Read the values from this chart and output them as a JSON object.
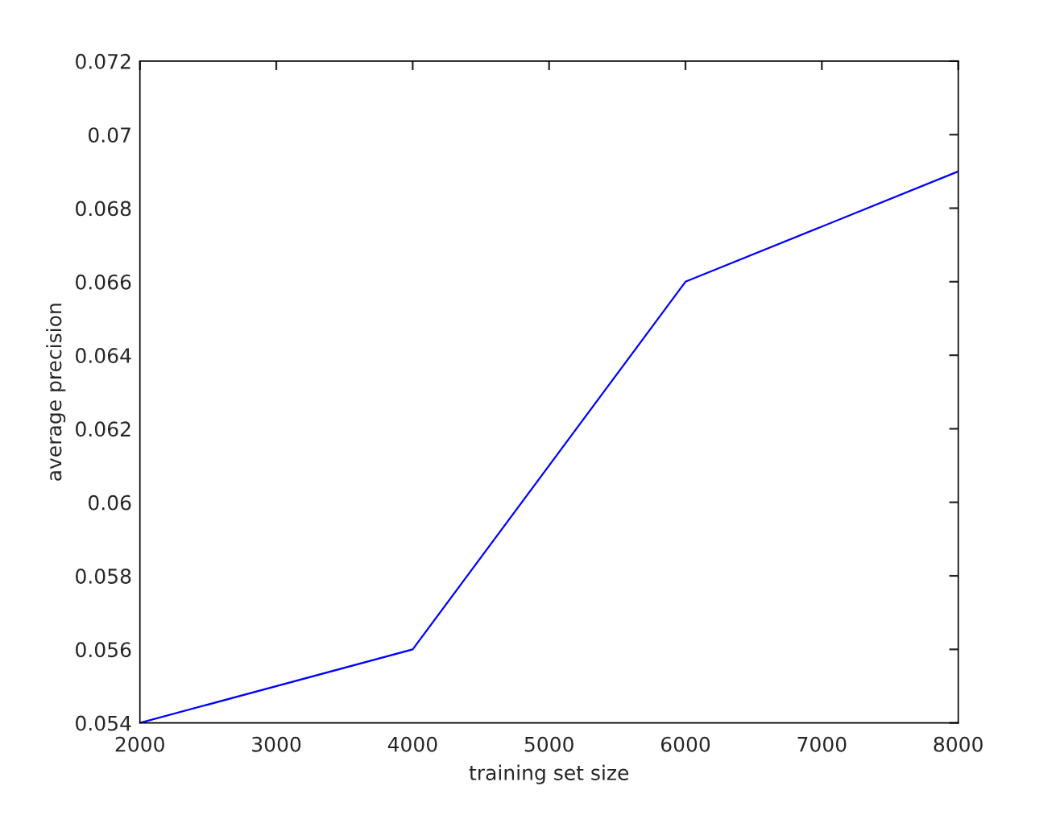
{
  "chart_data": {
    "type": "line",
    "xlabel": "training set size",
    "ylabel": "average precision",
    "x": [
      2000,
      4000,
      6000,
      8000
    ],
    "series": [
      {
        "color": "#0000ff",
        "values": [
          0.054,
          0.056,
          0.066,
          0.069
        ]
      }
    ],
    "xlim": [
      2000,
      8000
    ],
    "xticks": [
      2000,
      3000,
      4000,
      5000,
      6000,
      7000,
      8000
    ],
    "ylim": [
      0.054,
      0.072
    ],
    "yticks": [
      0.054,
      0.056,
      0.058,
      0.06,
      0.062,
      0.064,
      0.066,
      0.068,
      0.07,
      0.072
    ],
    "marker": "none",
    "line_style": "solid"
  }
}
